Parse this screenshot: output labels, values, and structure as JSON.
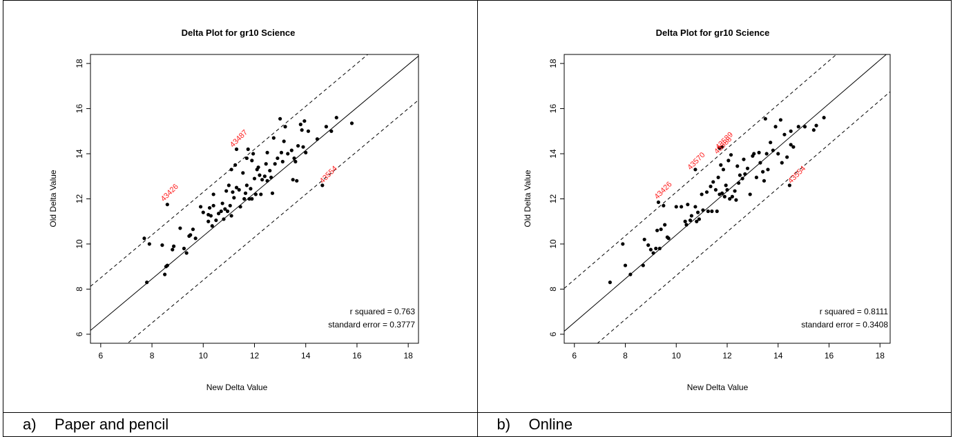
{
  "charts": [
    {
      "caption": {
        "letter": "a)",
        "text": "Paper and pencil"
      },
      "chart_data": {
        "type": "scatter",
        "title": "Delta Plot for gr10 Science",
        "xlabel": "New Delta Value",
        "ylabel": "Old Delta Value",
        "xlim": [
          5.6,
          18.4
        ],
        "ylim": [
          5.6,
          18.4
        ],
        "xticks": [
          6,
          8,
          10,
          12,
          14,
          16,
          18
        ],
        "yticks": [
          6,
          8,
          10,
          12,
          14,
          16,
          18
        ],
        "lines": [
          {
            "name": "fit",
            "style": "solid",
            "intercept": 0.85,
            "slope": 0.95
          },
          {
            "name": "upper bound",
            "style": "dashed",
            "intercept": 2.8,
            "slope": 0.95
          },
          {
            "name": "lower bound",
            "style": "dashed",
            "intercept": -1.1,
            "slope": 0.95
          }
        ],
        "points": [
          [
            7.7,
            10.25
          ],
          [
            7.9,
            10.0
          ],
          [
            7.8,
            8.3
          ],
          [
            8.4,
            9.95
          ],
          [
            8.5,
            8.65
          ],
          [
            8.55,
            9.0
          ],
          [
            8.6,
            9.05
          ],
          [
            8.8,
            9.75
          ],
          [
            8.85,
            9.9
          ],
          [
            9.1,
            10.7
          ],
          [
            9.25,
            9.8
          ],
          [
            9.35,
            9.6
          ],
          [
            9.45,
            10.35
          ],
          [
            9.5,
            10.4
          ],
          [
            9.6,
            10.65
          ],
          [
            9.7,
            10.25
          ],
          [
            9.9,
            11.65
          ],
          [
            10.0,
            11.4
          ],
          [
            10.2,
            11.0
          ],
          [
            10.2,
            11.3
          ],
          [
            10.25,
            11.6
          ],
          [
            10.3,
            11.25
          ],
          [
            10.35,
            10.8
          ],
          [
            10.4,
            11.7
          ],
          [
            10.4,
            12.2
          ],
          [
            10.5,
            11.05
          ],
          [
            10.6,
            11.35
          ],
          [
            10.7,
            11.45
          ],
          [
            10.75,
            11.8
          ],
          [
            10.8,
            11.1
          ],
          [
            10.85,
            11.55
          ],
          [
            10.9,
            12.35
          ],
          [
            10.95,
            11.45
          ],
          [
            11.0,
            12.6
          ],
          [
            11.05,
            11.7
          ],
          [
            11.1,
            11.25
          ],
          [
            11.1,
            13.3
          ],
          [
            11.15,
            12.3
          ],
          [
            11.2,
            12.05
          ],
          [
            11.25,
            13.5
          ],
          [
            11.3,
            12.5
          ],
          [
            11.4,
            12.4
          ],
          [
            11.45,
            11.65
          ],
          [
            11.55,
            13.15
          ],
          [
            11.6,
            12.0
          ],
          [
            11.65,
            12.25
          ],
          [
            11.7,
            12.6
          ],
          [
            11.7,
            13.8
          ],
          [
            11.75,
            14.2
          ],
          [
            11.8,
            12.0
          ],
          [
            11.85,
            12.45
          ],
          [
            11.9,
            13.7
          ],
          [
            11.9,
            12.0
          ],
          [
            11.95,
            14.0
          ],
          [
            12.0,
            12.9
          ],
          [
            12.05,
            12.2
          ],
          [
            12.1,
            13.3
          ],
          [
            12.15,
            13.4
          ],
          [
            12.2,
            13.05
          ],
          [
            12.25,
            12.2
          ],
          [
            12.3,
            12.85
          ],
          [
            12.4,
            13.0
          ],
          [
            12.45,
            13.55
          ],
          [
            12.5,
            12.8
          ],
          [
            12.5,
            14.05
          ],
          [
            12.6,
            13.25
          ],
          [
            12.65,
            12.95
          ],
          [
            12.7,
            12.25
          ],
          [
            12.75,
            14.7
          ],
          [
            12.8,
            13.55
          ],
          [
            12.9,
            13.8
          ],
          [
            13.0,
            15.55
          ],
          [
            13.05,
            14.05
          ],
          [
            13.1,
            13.65
          ],
          [
            13.15,
            14.55
          ],
          [
            13.2,
            15.2
          ],
          [
            13.3,
            14.0
          ],
          [
            13.45,
            14.15
          ],
          [
            13.5,
            12.85
          ],
          [
            13.55,
            13.8
          ],
          [
            13.6,
            13.65
          ],
          [
            13.65,
            12.8
          ],
          [
            13.7,
            14.35
          ],
          [
            13.8,
            15.3
          ],
          [
            13.85,
            15.05
          ],
          [
            13.9,
            14.3
          ],
          [
            13.95,
            15.45
          ],
          [
            14.0,
            14.05
          ],
          [
            14.1,
            15.0
          ],
          [
            14.45,
            14.65
          ],
          [
            14.8,
            15.2
          ],
          [
            15.0,
            15.0
          ],
          [
            15.2,
            15.6
          ],
          [
            15.8,
            15.35
          ],
          [
            8.6,
            11.75
          ],
          [
            11.3,
            14.2
          ],
          [
            14.65,
            12.6
          ]
        ],
        "labels": [
          {
            "x": 8.75,
            "y": 12.2,
            "text": "43426"
          },
          {
            "x": 11.45,
            "y": 14.6,
            "text": "43487"
          },
          {
            "x": 14.95,
            "y": 13.0,
            "text": "43554"
          }
        ],
        "stats": {
          "r_squared": "r squared = 0.763",
          "standard_error": "standard error = 0.3777"
        }
      }
    },
    {
      "caption": {
        "letter": "b)",
        "text": "Online"
      },
      "chart_data": {
        "type": "scatter",
        "title": "Delta Plot for gr10 Science",
        "xlabel": "New Delta Value",
        "ylabel": "Old Delta Value",
        "xlim": [
          5.6,
          18.4
        ],
        "ylim": [
          5.6,
          18.4
        ],
        "xticks": [
          6,
          8,
          10,
          12,
          14,
          16,
          18
        ],
        "yticks": [
          6,
          8,
          10,
          12,
          14,
          16,
          18
        ],
        "lines": [
          {
            "name": "fit",
            "style": "solid",
            "intercept": 0.7,
            "slope": 0.97
          },
          {
            "name": "upper bound",
            "style": "dashed",
            "intercept": 2.6,
            "slope": 0.97
          },
          {
            "name": "lower bound",
            "style": "dashed",
            "intercept": -1.1,
            "slope": 0.97
          }
        ],
        "points": [
          [
            7.4,
            8.3
          ],
          [
            7.9,
            10.0
          ],
          [
            8.0,
            9.05
          ],
          [
            8.2,
            8.65
          ],
          [
            8.7,
            9.05
          ],
          [
            8.75,
            10.2
          ],
          [
            8.9,
            9.95
          ],
          [
            9.0,
            9.75
          ],
          [
            9.1,
            9.6
          ],
          [
            9.2,
            9.8
          ],
          [
            9.25,
            10.6
          ],
          [
            9.35,
            9.8
          ],
          [
            9.4,
            10.65
          ],
          [
            9.5,
            11.7
          ],
          [
            9.55,
            10.85
          ],
          [
            9.65,
            10.3
          ],
          [
            9.7,
            10.25
          ],
          [
            10.0,
            11.65
          ],
          [
            10.2,
            11.65
          ],
          [
            10.35,
            11.0
          ],
          [
            10.4,
            10.85
          ],
          [
            10.45,
            11.75
          ],
          [
            10.55,
            11.05
          ],
          [
            10.6,
            11.25
          ],
          [
            10.75,
            11.65
          ],
          [
            10.8,
            11.0
          ],
          [
            10.85,
            11.4
          ],
          [
            10.9,
            11.1
          ],
          [
            11.0,
            12.2
          ],
          [
            11.05,
            11.5
          ],
          [
            11.2,
            12.3
          ],
          [
            11.25,
            11.45
          ],
          [
            11.35,
            12.55
          ],
          [
            11.4,
            11.45
          ],
          [
            11.45,
            12.75
          ],
          [
            11.55,
            12.4
          ],
          [
            11.6,
            11.45
          ],
          [
            11.65,
            12.95
          ],
          [
            11.7,
            12.2
          ],
          [
            11.75,
            13.5
          ],
          [
            11.8,
            12.25
          ],
          [
            11.85,
            13.3
          ],
          [
            11.9,
            12.1
          ],
          [
            11.95,
            12.6
          ],
          [
            12.0,
            12.4
          ],
          [
            12.05,
            13.7
          ],
          [
            12.1,
            12.0
          ],
          [
            12.15,
            13.95
          ],
          [
            12.2,
            12.1
          ],
          [
            12.3,
            12.35
          ],
          [
            12.35,
            11.95
          ],
          [
            12.4,
            13.45
          ],
          [
            12.45,
            12.7
          ],
          [
            12.5,
            13.05
          ],
          [
            12.6,
            12.9
          ],
          [
            12.65,
            13.75
          ],
          [
            12.7,
            13.1
          ],
          [
            12.8,
            13.35
          ],
          [
            12.9,
            12.2
          ],
          [
            13.0,
            13.9
          ],
          [
            13.05,
            14.0
          ],
          [
            13.15,
            12.95
          ],
          [
            13.25,
            14.05
          ],
          [
            13.3,
            13.6
          ],
          [
            13.4,
            13.2
          ],
          [
            13.45,
            12.8
          ],
          [
            13.5,
            15.55
          ],
          [
            13.55,
            14.0
          ],
          [
            13.6,
            13.3
          ],
          [
            13.7,
            14.5
          ],
          [
            13.8,
            14.15
          ],
          [
            13.9,
            15.2
          ],
          [
            14.0,
            14.0
          ],
          [
            14.1,
            15.5
          ],
          [
            14.15,
            13.6
          ],
          [
            14.25,
            14.85
          ],
          [
            14.35,
            13.85
          ],
          [
            14.5,
            14.4
          ],
          [
            14.6,
            14.3
          ],
          [
            14.8,
            15.2
          ],
          [
            15.05,
            15.2
          ],
          [
            15.4,
            15.05
          ],
          [
            15.5,
            15.25
          ],
          [
            15.8,
            15.6
          ],
          [
            14.5,
            15.0
          ],
          [
            9.3,
            11.85
          ],
          [
            10.75,
            13.3
          ],
          [
            11.7,
            14.25
          ],
          [
            11.8,
            14.3
          ],
          [
            14.45,
            12.6
          ]
        ],
        "labels": [
          {
            "x": 9.55,
            "y": 12.3,
            "text": "43426"
          },
          {
            "x": 10.85,
            "y": 13.6,
            "text": "43570"
          },
          {
            "x": 11.95,
            "y": 14.5,
            "text": "43589"
          },
          {
            "x": 11.9,
            "y": 14.3,
            "text": "43588"
          },
          {
            "x": 14.8,
            "y": 13.0,
            "text": "43554"
          }
        ],
        "stats": {
          "r_squared": "r squared = 0.8111",
          "standard_error": "standard error = 0.3408"
        }
      }
    }
  ]
}
